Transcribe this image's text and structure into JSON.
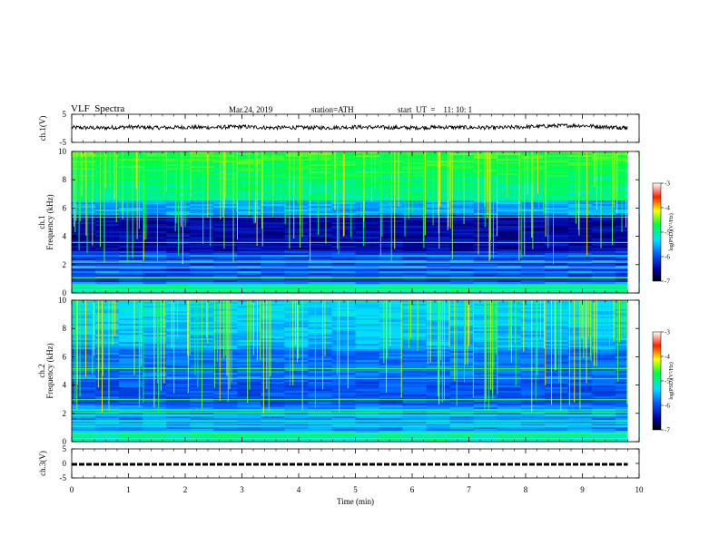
{
  "header": {
    "title": "VLF  Spectra",
    "date": "Mar.24, 2019",
    "station": "station=ATH",
    "start": "start  UT  =    11: 10: 1"
  },
  "chart_data": [
    {
      "type": "line",
      "name": "ch1-waveform",
      "ylabel": "ch.1(V)",
      "ylim": [
        -5,
        5
      ],
      "yticks": [
        "5",
        "-5"
      ],
      "x": [
        0,
        0.5,
        1,
        1.5,
        2,
        2.5,
        3,
        3.5,
        4,
        4.5,
        5,
        5.5,
        6,
        6.5,
        7,
        7.5,
        8,
        8.5,
        9,
        9.5,
        9.8
      ],
      "y": [
        0.3,
        0.1,
        0.5,
        0.2,
        0.4,
        0.3,
        0.6,
        0.2,
        0.3,
        0.2,
        0.5,
        0.3,
        0.2,
        0.4,
        0.3,
        0.2,
        0.5,
        0.9,
        1.0,
        0.4,
        0.3
      ]
    },
    {
      "type": "heatmap",
      "name": "ch1-spectrogram",
      "ylabel": "Frequency  (kHz)",
      "channel_label": "ch.1",
      "ylim": [
        0,
        10
      ],
      "yticks": [
        "0",
        "2",
        "4",
        "6",
        "8",
        "10"
      ],
      "colorbar": {
        "label": "log(PSD)(V²/Hz)",
        "range": [
          -7,
          -3
        ],
        "ticks": [
          "-3",
          "-4",
          "-5",
          "-6",
          "-7"
        ]
      }
    },
    {
      "type": "heatmap",
      "name": "ch2-spectrogram",
      "ylabel": "Frequency  (kHz)",
      "channel_label": "ch.2",
      "ylim": [
        0,
        10
      ],
      "yticks": [
        "0",
        "2",
        "4",
        "6",
        "8",
        "10"
      ],
      "colorbar": {
        "label": "log(PSD)(V²/Hz)",
        "range": [
          -7,
          -3
        ],
        "ticks": [
          "-3",
          "-4",
          "-5",
          "-6",
          "-7"
        ]
      }
    },
    {
      "type": "line",
      "name": "ch3-waveform",
      "ylabel": "ch.3(V)",
      "ylim": [
        -5,
        5
      ],
      "yticks": [
        "5",
        "0",
        "-5"
      ],
      "x": [
        0,
        9.8
      ],
      "y": [
        -0.3,
        -0.3
      ]
    }
  ],
  "xaxis": {
    "label": "Time  (min)",
    "range": [
      0,
      10
    ],
    "ticks": [
      "0",
      "1",
      "2",
      "3",
      "4",
      "5",
      "6",
      "7",
      "8",
      "9",
      "10"
    ]
  },
  "colors": {
    "axis": "#000000",
    "low": "#000030",
    "mid": "#00d0ff",
    "high": "#ffff00"
  }
}
